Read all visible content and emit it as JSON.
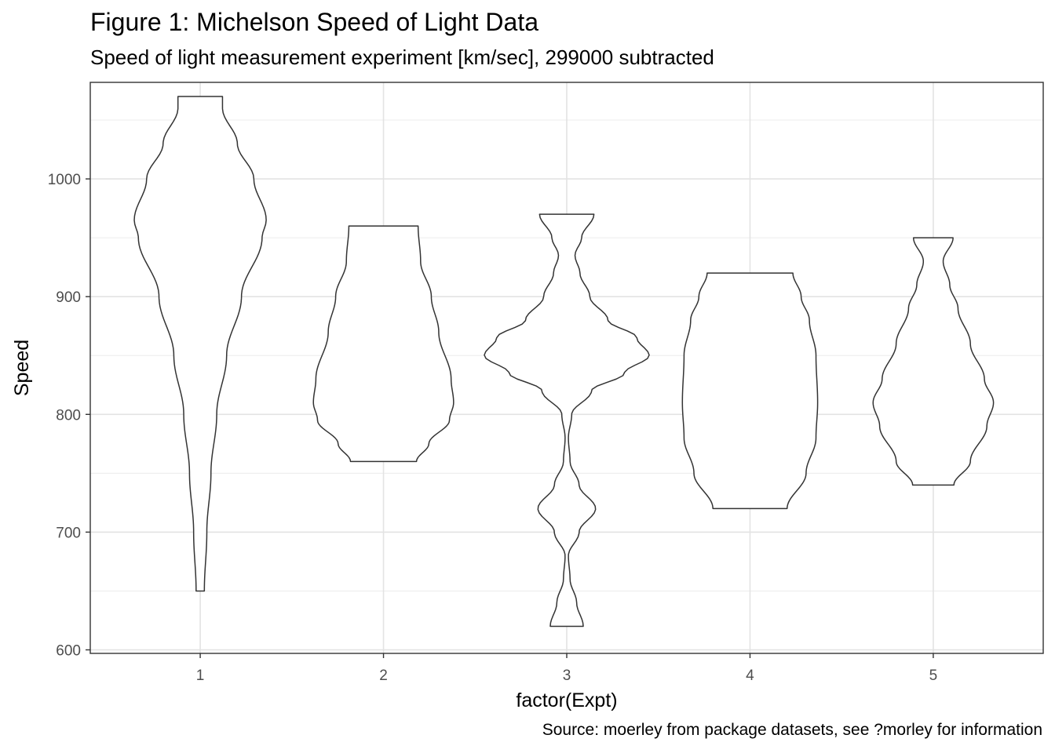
{
  "chart_data": {
    "type": "violin",
    "title": "Figure 1: Michelson Speed of Light Data",
    "subtitle": "Speed of light measurement experiment [km/sec], 299000 subtracted",
    "caption": "Source: moerley from package datasets, see ?morley for information",
    "xlabel": "factor(Expt)",
    "ylabel": "Speed",
    "categories": [
      "1",
      "2",
      "3",
      "4",
      "5"
    ],
    "ylim": [
      597,
      1082
    ],
    "yticks": [
      600,
      700,
      800,
      900,
      1000
    ],
    "grid": true,
    "series": [
      {
        "category": "1",
        "min": 650,
        "max": 1070,
        "density": [
          [
            650,
            0.05
          ],
          [
            700,
            0.08
          ],
          [
            750,
            0.13
          ],
          [
            800,
            0.2
          ],
          [
            850,
            0.32
          ],
          [
            900,
            0.5
          ],
          [
            950,
            0.75
          ],
          [
            965,
            0.8
          ],
          [
            1000,
            0.65
          ],
          [
            1030,
            0.45
          ],
          [
            1060,
            0.27
          ],
          [
            1070,
            0.27
          ]
        ]
      },
      {
        "category": "2",
        "min": 760,
        "max": 960,
        "density": [
          [
            760,
            0.4
          ],
          [
            775,
            0.55
          ],
          [
            795,
            0.8
          ],
          [
            810,
            0.85
          ],
          [
            830,
            0.82
          ],
          [
            870,
            0.67
          ],
          [
            900,
            0.58
          ],
          [
            930,
            0.45
          ],
          [
            960,
            0.42
          ]
        ]
      },
      {
        "category": "3",
        "min": 620,
        "max": 970,
        "density": [
          [
            620,
            0.2
          ],
          [
            640,
            0.12
          ],
          [
            660,
            0.04
          ],
          [
            680,
            0.02
          ],
          [
            700,
            0.15
          ],
          [
            720,
            0.35
          ],
          [
            740,
            0.15
          ],
          [
            760,
            0.04
          ],
          [
            780,
            0.02
          ],
          [
            800,
            0.06
          ],
          [
            820,
            0.3
          ],
          [
            835,
            0.7
          ],
          [
            850,
            1.0
          ],
          [
            865,
            0.85
          ],
          [
            880,
            0.5
          ],
          [
            900,
            0.28
          ],
          [
            920,
            0.16
          ],
          [
            935,
            0.1
          ],
          [
            950,
            0.18
          ],
          [
            970,
            0.33
          ]
        ]
      },
      {
        "category": "4",
        "min": 720,
        "max": 920,
        "density": [
          [
            720,
            0.45
          ],
          [
            750,
            0.68
          ],
          [
            780,
            0.8
          ],
          [
            810,
            0.82
          ],
          [
            850,
            0.8
          ],
          [
            880,
            0.72
          ],
          [
            900,
            0.62
          ],
          [
            920,
            0.52
          ]
        ]
      },
      {
        "category": "5",
        "min": 740,
        "max": 950,
        "density": [
          [
            740,
            0.25
          ],
          [
            760,
            0.45
          ],
          [
            790,
            0.65
          ],
          [
            810,
            0.73
          ],
          [
            830,
            0.62
          ],
          [
            860,
            0.45
          ],
          [
            890,
            0.3
          ],
          [
            910,
            0.2
          ],
          [
            930,
            0.12
          ],
          [
            950,
            0.24
          ]
        ]
      }
    ]
  }
}
